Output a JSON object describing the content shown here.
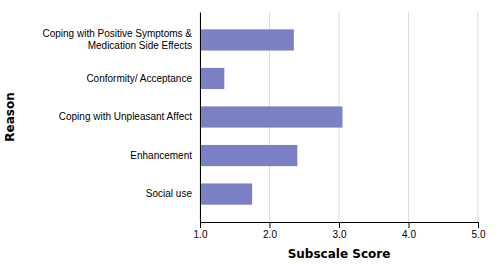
{
  "chart_data": {
    "type": "bar",
    "orientation": "horizontal",
    "categories": [
      "Social use",
      "Enhancement",
      "Coping with Unpleasant Affect",
      "Conformity/ Acceptance",
      "Coping with Positive Symptoms &\nMedication Side Effects"
    ],
    "values": [
      1.75,
      2.4,
      3.05,
      1.35,
      2.35
    ],
    "color": "#7b7fc4",
    "xlabel": "Subscale Score",
    "ylabel": "Reason",
    "xlim": [
      1.0,
      5.0
    ],
    "xticks": [
      {
        "value": 1.0,
        "label": "1.0"
      },
      {
        "value": 2.0,
        "label": "2.0"
      },
      {
        "value": 3.0,
        "label": "3.0"
      },
      {
        "value": 4.0,
        "label": "4.0"
      },
      {
        "value": 5.0,
        "label": "5.0"
      }
    ],
    "grid": true
  }
}
